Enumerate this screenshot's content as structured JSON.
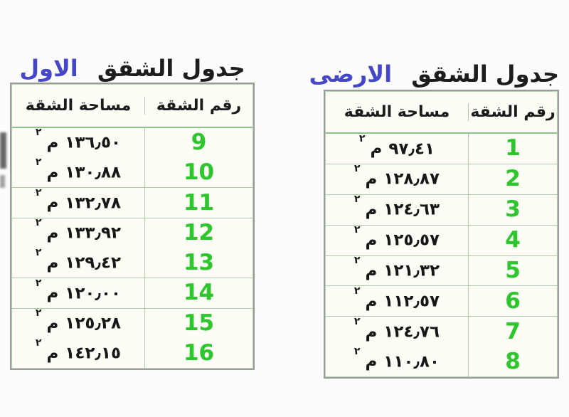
{
  "colors": {
    "accent_blue": "#4646c8",
    "number_green": "#2ec52e",
    "grid_green": "#a9cea9",
    "outer_border_grey": "#9b9b9b",
    "table_background": "#fdfdf6"
  },
  "tables": [
    {
      "id": "ground-floor",
      "title_main": "جدول الشقق",
      "title_accent": "الارضى",
      "headers": {
        "number": "رقم الشقة",
        "area": "مساحة الشقة"
      },
      "unit": {
        "letter": "م",
        "sup": "٢"
      },
      "groups": [
        [
          {
            "no": "1",
            "area": "٩٧٫٤١"
          }
        ],
        [
          {
            "no": "2",
            "area": "١٢٨٫٨٧"
          }
        ],
        [
          {
            "no": "3",
            "area": "١٢٤٫٦٣"
          }
        ],
        [
          {
            "no": "4",
            "area": "١٢٥٫٥٧"
          }
        ],
        [
          {
            "no": "5",
            "area": "١٢١٫٣٢"
          }
        ],
        [
          {
            "no": "6",
            "area": "١١٢٫٥٧"
          }
        ],
        [
          {
            "no": "7",
            "area": "١٢٤٫٧٦"
          },
          {
            "no": "8",
            "area": "١١٠٫٨٠"
          }
        ]
      ]
    },
    {
      "id": "first-floor",
      "title_main": "جدول الشقق",
      "title_accent": "الاول",
      "headers": {
        "number": "رقم الشقة",
        "area": "مساحة الشقة"
      },
      "unit": {
        "letter": "م",
        "sup": "٢"
      },
      "groups": [
        [
          {
            "no": "9",
            "area": "١٣٦٫٥٠"
          },
          {
            "no": "10",
            "area": "١٣٠٫٨٨"
          }
        ],
        [
          {
            "no": "11",
            "area": "١٣٢٫٧٨"
          }
        ],
        [
          {
            "no": "12",
            "area": "١٣٣٫٩٢"
          },
          {
            "no": "13",
            "area": "١٢٩٫٤٢"
          }
        ],
        [
          {
            "no": "14",
            "area": "١٢٠٫٠٠"
          }
        ],
        [
          {
            "no": "15",
            "area": "١٢٥٫٢٨"
          },
          {
            "no": "16",
            "area": "١٤٢٫١٥"
          }
        ]
      ]
    }
  ]
}
